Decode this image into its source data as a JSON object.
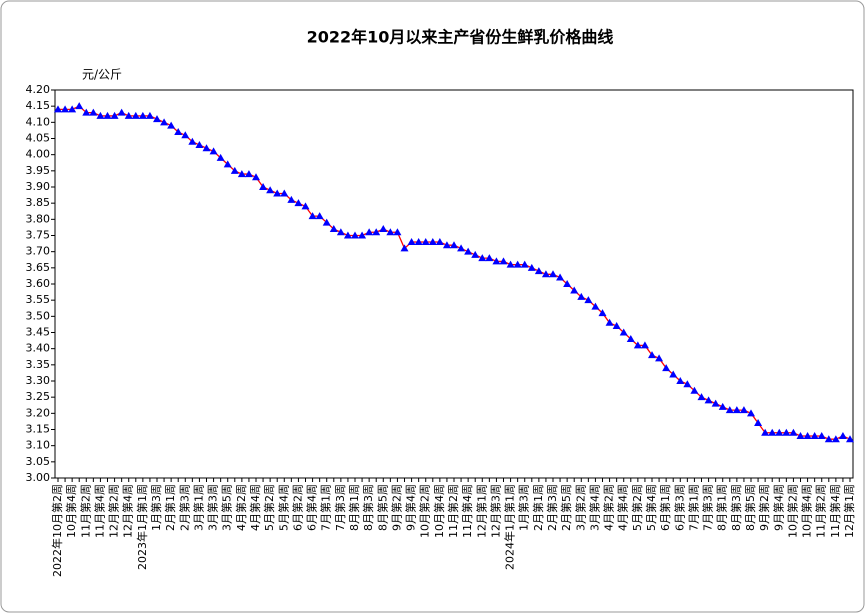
{
  "chart_data": {
    "type": "line",
    "title": "2022年10月以来主产省份生鲜乳价格曲线",
    "y_label": "元/公斤",
    "categories": [
      "2022年10月第2周",
      null,
      "10月第4周",
      null,
      "11月第2周",
      null,
      "11月第4周",
      null,
      "12月第2周",
      null,
      "12月第4周",
      null,
      "2023年1月第1周",
      null,
      "1月第3周",
      null,
      "2月第1周",
      null,
      "2月第3周",
      null,
      "3月第1周",
      null,
      "3月第3周",
      null,
      "3月第5周",
      null,
      "4月第2周",
      null,
      "4月第4周",
      null,
      "5月第2周",
      null,
      "5月第4周",
      null,
      "6月第2周",
      null,
      "6月第4周",
      null,
      "7月第1周",
      null,
      "7月第3周",
      null,
      "8月第1周",
      null,
      "8月第3周",
      null,
      "8月第5周",
      null,
      "9月第2周",
      null,
      "9月第4周",
      null,
      "10月第2周",
      null,
      "10月第4周",
      null,
      "11月第2周",
      null,
      "11月第4周",
      null,
      "12月第1周",
      null,
      "12月第3周",
      null,
      "2024年1月第1周",
      null,
      "1月第3周",
      null,
      "2月第1周",
      null,
      "2月第3周",
      null,
      "2月第5周",
      null,
      "3月第2周",
      null,
      "3月第4周",
      null,
      "4月第2周",
      null,
      "4月第4周",
      null,
      "5月第2周",
      null,
      "5月第4周",
      null,
      "6月第1周",
      null,
      "6月第3周",
      null,
      "7月第1周",
      null,
      "7月第3周",
      null,
      "8月第1周",
      null,
      "8月第3周",
      null,
      "8月第5周",
      null,
      "9月第2周",
      null,
      "9月第4周",
      null,
      "10月第2周",
      null,
      "10月第4周",
      null,
      "11月第2周",
      null,
      "11月第4周",
      null,
      "12月第1周"
    ],
    "series": [
      {
        "color": "#ff0000",
        "marker_color": "#0000ff",
        "values": [
          4.14,
          4.14,
          4.14,
          4.15,
          4.13,
          4.13,
          4.12,
          4.12,
          4.12,
          4.13,
          4.12,
          4.12,
          4.12,
          4.12,
          4.11,
          4.1,
          4.09,
          4.07,
          4.06,
          4.04,
          4.03,
          4.02,
          4.01,
          3.99,
          3.97,
          3.95,
          3.94,
          3.94,
          3.93,
          3.9,
          3.89,
          3.88,
          3.88,
          3.86,
          3.85,
          3.84,
          3.81,
          3.81,
          3.79,
          3.77,
          3.76,
          3.75,
          3.75,
          3.75,
          3.76,
          3.76,
          3.77,
          3.76,
          3.76,
          3.71,
          3.73,
          3.73,
          3.73,
          3.73,
          3.73,
          3.72,
          3.72,
          3.71,
          3.7,
          3.69,
          3.68,
          3.68,
          3.67,
          3.67,
          3.66,
          3.66,
          3.66,
          3.65,
          3.64,
          3.63,
          3.63,
          3.62,
          3.6,
          3.58,
          3.56,
          3.55,
          3.53,
          3.51,
          3.48,
          3.47,
          3.45,
          3.43,
          3.41,
          3.41,
          3.38,
          3.37,
          3.34,
          3.32,
          3.3,
          3.29,
          3.27,
          3.25,
          3.24,
          3.23,
          3.22,
          3.21,
          3.21,
          3.21,
          3.2,
          3.17,
          3.14,
          3.14,
          3.14,
          3.14,
          3.14,
          3.13,
          3.13,
          3.13,
          3.13,
          3.12,
          3.12,
          3.13,
          3.12
        ]
      }
    ],
    "ylim": [
      3.0,
      4.2
    ],
    "yticks": [
      {
        "value": 3.0,
        "label": "3.00"
      },
      3.05,
      {
        "value": 3.1,
        "label": "3.10"
      },
      3.15,
      {
        "value": 3.2,
        "label": "3.20"
      },
      3.25,
      {
        "value": 3.3,
        "label": "3.30"
      },
      3.35,
      {
        "value": 3.4,
        "label": "3.40"
      },
      3.45,
      {
        "value": 3.5,
        "label": "3.50"
      },
      3.55,
      {
        "value": 3.6,
        "label": "3.60"
      },
      3.65,
      {
        "value": 3.7,
        "label": "3.70"
      },
      3.75,
      {
        "value": 3.8,
        "label": "3.80"
      },
      3.85,
      {
        "value": 3.9,
        "label": "3.90"
      },
      3.95,
      {
        "value": 4.0,
        "label": "4.00"
      },
      4.05,
      {
        "value": 4.1,
        "label": "4.10"
      },
      4.15,
      {
        "value": 4.2,
        "label": "4.20"
      }
    ],
    "grid": false
  }
}
